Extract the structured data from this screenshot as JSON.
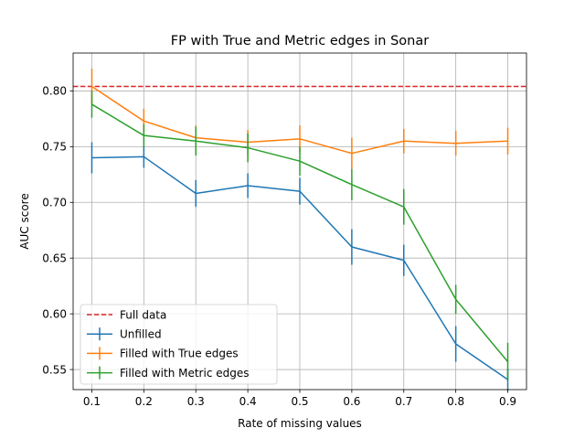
{
  "chart_data": {
    "type": "line",
    "title": "FP with True and Metric edges in Sonar",
    "xlabel": "Rate of missing values",
    "ylabel": "AUC score",
    "x": [
      0.1,
      0.2,
      0.3,
      0.4,
      0.5,
      0.6,
      0.7,
      0.8,
      0.9
    ],
    "x_ticks": [
      "0.1",
      "0.2",
      "0.3",
      "0.4",
      "0.5",
      "0.6",
      "0.7",
      "0.8",
      "0.9"
    ],
    "y_ticks": [
      "0.55",
      "0.60",
      "0.65",
      "0.70",
      "0.75",
      "0.80"
    ],
    "xlim": [
      0.064,
      0.936
    ],
    "ylim": [
      0.532,
      0.834
    ],
    "grid": true,
    "legend_position": "lower-left",
    "reference_line": {
      "name": "Full data",
      "value": 0.804,
      "color": "#d62728",
      "style": "dashed"
    },
    "series": [
      {
        "name": "Unfilled",
        "color": "#1f77b4",
        "values": [
          0.74,
          0.741,
          0.708,
          0.715,
          0.71,
          0.66,
          0.648,
          0.573,
          0.541
        ],
        "errors": [
          0.014,
          0.01,
          0.012,
          0.011,
          0.012,
          0.016,
          0.014,
          0.016,
          0.01
        ]
      },
      {
        "name": "Filled with True edges",
        "color": "#ff7f0e",
        "values": [
          0.804,
          0.773,
          0.758,
          0.754,
          0.757,
          0.744,
          0.755,
          0.753,
          0.755
        ],
        "errors": [
          0.016,
          0.011,
          0.011,
          0.011,
          0.012,
          0.014,
          0.011,
          0.011,
          0.012
        ]
      },
      {
        "name": "Filled with Metric edges",
        "color": "#2ca02c",
        "values": [
          0.788,
          0.76,
          0.755,
          0.749,
          0.737,
          0.716,
          0.696,
          0.613,
          0.557
        ],
        "errors": [
          0.012,
          0.01,
          0.013,
          0.013,
          0.013,
          0.014,
          0.016,
          0.013,
          0.017
        ]
      }
    ]
  }
}
